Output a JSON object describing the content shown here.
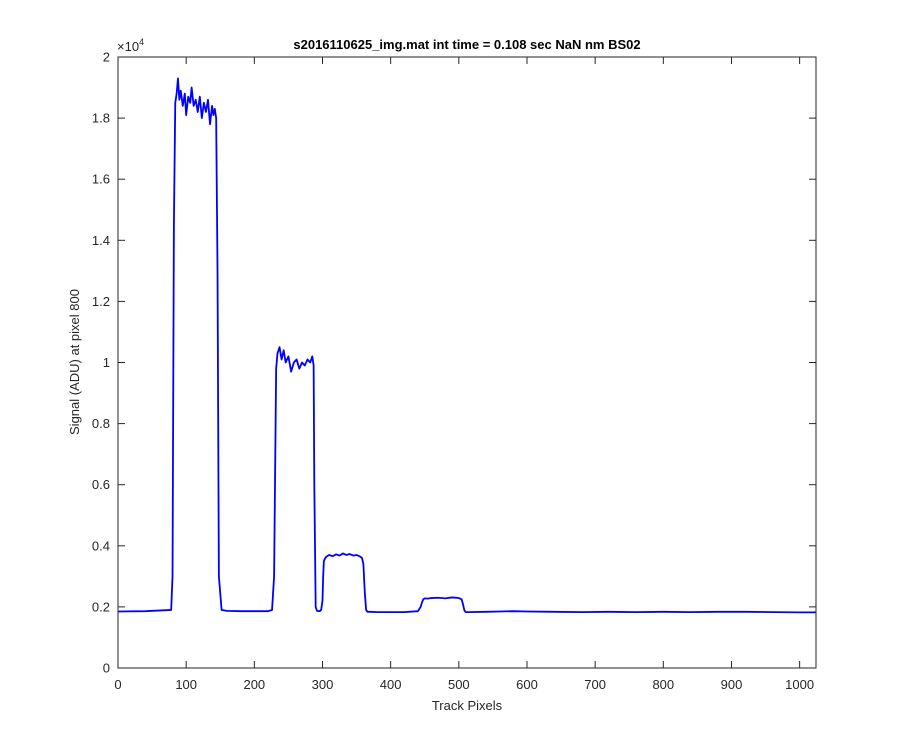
{
  "chart_data": {
    "type": "line",
    "title": "s2016110625_img.mat int time = 0.108 sec  NaN nm BS02",
    "xlabel": "Track Pixels",
    "ylabel": "Signal (ADU) at pixel 800",
    "exponent_base": "×10",
    "exponent_power": "4",
    "xlim": [
      0,
      1024
    ],
    "ylim": [
      0,
      2
    ],
    "x_ticks": [
      0,
      100,
      200,
      300,
      400,
      500,
      600,
      700,
      800,
      900,
      1000
    ],
    "y_ticks": [
      0,
      0.2,
      0.4,
      0.6,
      0.8,
      1,
      1.2,
      1.4,
      1.6,
      1.8,
      2
    ],
    "x_tick_labels": [
      "0",
      "100",
      "200",
      "300",
      "400",
      "500",
      "600",
      "700",
      "800",
      "900",
      "1000"
    ],
    "y_tick_labels": [
      "0",
      "0.2",
      "0.4",
      "0.6",
      "0.8",
      "1",
      "1.2",
      "1.4",
      "1.6",
      "1.8",
      "2"
    ],
    "grid": false,
    "series": [
      {
        "color": "#0000ff",
        "x": [
          0,
          40,
          78,
          80,
          82,
          84,
          86,
          88,
          90,
          92,
          95,
          98,
          100,
          103,
          106,
          108,
          111,
          114,
          117,
          120,
          123,
          126,
          129,
          132,
          135,
          138,
          140,
          142,
          144,
          146,
          148,
          152,
          160,
          180,
          200,
          220,
          226,
          229,
          232,
          234,
          237,
          240,
          243,
          246,
          250,
          254,
          258,
          262,
          266,
          270,
          274,
          278,
          282,
          285,
          287,
          288,
          290,
          292,
          296,
          298,
          300,
          301,
          302,
          304,
          306,
          310,
          315,
          320,
          325,
          330,
          335,
          340,
          345,
          350,
          355,
          358,
          360,
          362,
          364,
          366,
          370,
          380,
          400,
          420,
          440,
          444,
          446,
          448,
          450,
          454,
          460,
          470,
          480,
          490,
          500,
          504,
          506,
          508,
          510,
          514,
          540,
          560,
          580,
          600,
          640,
          680,
          720,
          760,
          800,
          840,
          880,
          920,
          960,
          1000,
          1024
        ],
        "y": [
          0.185,
          0.186,
          0.19,
          0.3,
          1.45,
          1.85,
          1.88,
          1.93,
          1.86,
          1.89,
          1.84,
          1.88,
          1.81,
          1.87,
          1.85,
          1.9,
          1.84,
          1.86,
          1.82,
          1.87,
          1.8,
          1.85,
          1.82,
          1.86,
          1.78,
          1.84,
          1.81,
          1.83,
          1.8,
          1.3,
          0.3,
          0.19,
          0.187,
          0.186,
          0.186,
          0.186,
          0.19,
          0.3,
          0.98,
          1.03,
          1.05,
          1.01,
          1.04,
          1.0,
          1.02,
          0.97,
          1.0,
          1.01,
          0.98,
          1.0,
          0.99,
          1.01,
          1.0,
          1.02,
          0.99,
          0.6,
          0.2,
          0.187,
          0.186,
          0.19,
          0.22,
          0.3,
          0.35,
          0.36,
          0.365,
          0.37,
          0.366,
          0.372,
          0.368,
          0.375,
          0.37,
          0.373,
          0.368,
          0.37,
          0.365,
          0.36,
          0.34,
          0.25,
          0.19,
          0.184,
          0.184,
          0.183,
          0.183,
          0.183,
          0.186,
          0.2,
          0.215,
          0.225,
          0.228,
          0.227,
          0.229,
          0.23,
          0.228,
          0.231,
          0.229,
          0.225,
          0.21,
          0.19,
          0.183,
          0.183,
          0.184,
          0.185,
          0.186,
          0.185,
          0.184,
          0.183,
          0.184,
          0.183,
          0.184,
          0.183,
          0.184,
          0.184,
          0.183,
          0.182,
          0.182
        ]
      }
    ]
  }
}
